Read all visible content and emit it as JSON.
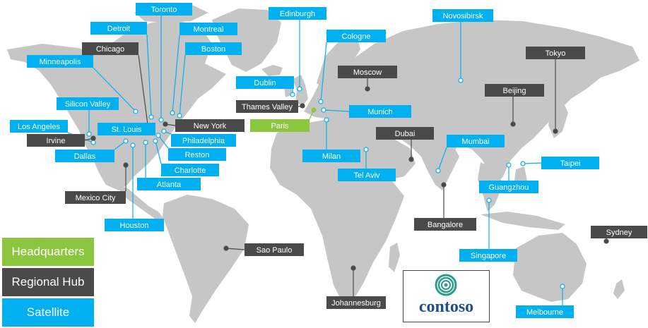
{
  "colors": {
    "land": "#c6c6c6",
    "hq": "#8cc63f",
    "hub": "#4a4a4a",
    "satellite": "#00b0f0",
    "label_text": "#ffffff"
  },
  "legend": {
    "headquarters": "Headquarters",
    "regional_hub": "Regional Hub",
    "satellite": "Satellite"
  },
  "logo": {
    "text": "contoso",
    "icon": "contoso-swirl-icon"
  },
  "locations": [
    {
      "name": "Toronto",
      "type": "satellite"
    },
    {
      "name": "Edinburgh",
      "type": "satellite"
    },
    {
      "name": "Novosibirsk",
      "type": "satellite"
    },
    {
      "name": "Detroit",
      "type": "satellite"
    },
    {
      "name": "Montreal",
      "type": "satellite"
    },
    {
      "name": "Cologne",
      "type": "satellite"
    },
    {
      "name": "Chicago",
      "type": "hub"
    },
    {
      "name": "Boston",
      "type": "satellite"
    },
    {
      "name": "Tokyo",
      "type": "hub"
    },
    {
      "name": "Minneapolis",
      "type": "satellite"
    },
    {
      "name": "Moscow",
      "type": "hub"
    },
    {
      "name": "Dublin",
      "type": "satellite"
    },
    {
      "name": "Beijing",
      "type": "hub"
    },
    {
      "name": "Silicon Valley",
      "type": "satellite"
    },
    {
      "name": "Thames Valley",
      "type": "hub"
    },
    {
      "name": "Munich",
      "type": "satellite"
    },
    {
      "name": "Los Angeles",
      "type": "satellite"
    },
    {
      "name": "St. Louis",
      "type": "satellite"
    },
    {
      "name": "New York",
      "type": "hub"
    },
    {
      "name": "Paris",
      "type": "hq"
    },
    {
      "name": "Dubai",
      "type": "hub"
    },
    {
      "name": "Irvine",
      "type": "hub"
    },
    {
      "name": "Philadelphia",
      "type": "satellite"
    },
    {
      "name": "Mumbai",
      "type": "satellite"
    },
    {
      "name": "Dallas",
      "type": "satellite"
    },
    {
      "name": "Reston",
      "type": "satellite"
    },
    {
      "name": "Milan",
      "type": "satellite"
    },
    {
      "name": "Taipei",
      "type": "satellite"
    },
    {
      "name": "Charlotte",
      "type": "satellite"
    },
    {
      "name": "Tel Aviv",
      "type": "satellite"
    },
    {
      "name": "Atlanta",
      "type": "satellite"
    },
    {
      "name": "Guangzhou",
      "type": "satellite"
    },
    {
      "name": "Mexico City",
      "type": "hub"
    },
    {
      "name": "Bangalore",
      "type": "hub"
    },
    {
      "name": "Houston",
      "type": "satellite"
    },
    {
      "name": "Sydney",
      "type": "hub"
    },
    {
      "name": "Sao Paulo",
      "type": "hub"
    },
    {
      "name": "Singapore",
      "type": "satellite"
    },
    {
      "name": "Melbourne",
      "type": "satellite"
    },
    {
      "name": "Johannesburg",
      "type": "hub"
    }
  ]
}
